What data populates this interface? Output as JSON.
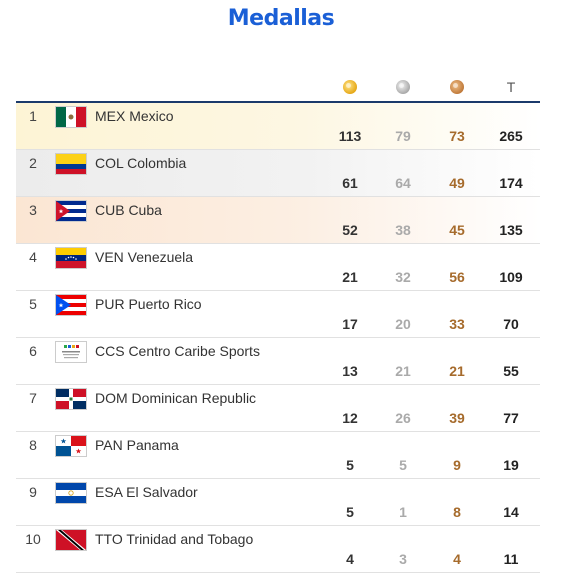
{
  "page": {
    "title": "Medallas"
  },
  "header": {
    "gold_icon": "gold-medal-icon",
    "silver_icon": "silver-medal-icon",
    "bronze_icon": "bronze-medal-icon",
    "total_label": "T"
  },
  "colors": {
    "title": "#1a5fd6",
    "gold_text": "#333333",
    "silver_text": "#aaaaaa",
    "bronze_text": "#a66b2c"
  },
  "rows": [
    {
      "rank": "1",
      "country": "MEX Mexico",
      "gold": "113",
      "silver": "79",
      "bronze": "73",
      "total": "265"
    },
    {
      "rank": "2",
      "country": "COL Colombia",
      "gold": "61",
      "silver": "64",
      "bronze": "49",
      "total": "174"
    },
    {
      "rank": "3",
      "country": "CUB Cuba",
      "gold": "52",
      "silver": "38",
      "bronze": "45",
      "total": "135"
    },
    {
      "rank": "4",
      "country": "VEN Venezuela",
      "gold": "21",
      "silver": "32",
      "bronze": "56",
      "total": "109"
    },
    {
      "rank": "5",
      "country": "PUR Puerto Rico",
      "gold": "17",
      "silver": "20",
      "bronze": "33",
      "total": "70"
    },
    {
      "rank": "6",
      "country": "CCS Centro Caribe Sports",
      "gold": "13",
      "silver": "21",
      "bronze": "21",
      "total": "55"
    },
    {
      "rank": "7",
      "country": "DOM Dominican Republic",
      "gold": "12",
      "silver": "26",
      "bronze": "39",
      "total": "77"
    },
    {
      "rank": "8",
      "country": "PAN Panama",
      "gold": "5",
      "silver": "5",
      "bronze": "9",
      "total": "19"
    },
    {
      "rank": "9",
      "country": "ESA El Salvador",
      "gold": "5",
      "silver": "1",
      "bronze": "8",
      "total": "14"
    },
    {
      "rank": "10",
      "country": "TTO Trinidad and Tobago",
      "gold": "4",
      "silver": "3",
      "bronze": "4",
      "total": "11"
    }
  ]
}
